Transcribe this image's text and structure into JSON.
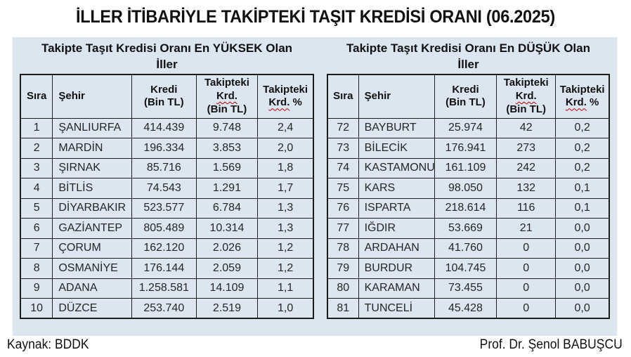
{
  "title": "İLLER İTİBARİYLE TAKİPTEKİ TAŞIT KREDİSİ ORANI (06.2025)",
  "footer": {
    "left": "Kaynak: BDDK",
    "right": "Prof. Dr. Şenol BABUŞCU"
  },
  "colors": {
    "panel_bg": "#dce6f1",
    "border": "#1c1c1c",
    "squiggle": "#c00000",
    "text": "#262626"
  },
  "columns": [
    {
      "key": "rank",
      "lines": [
        [
          {
            "t": "Sıra"
          }
        ]
      ]
    },
    {
      "key": "city",
      "lines": [
        [
          {
            "t": "Şehir"
          }
        ]
      ]
    },
    {
      "key": "credit",
      "lines": [
        [
          {
            "t": "Kredi"
          }
        ],
        [
          {
            "t": "(Bin TL)"
          }
        ]
      ]
    },
    {
      "key": "npl",
      "lines": [
        [
          {
            "t": "Takipteki"
          }
        ],
        [
          {
            "t": "Krd.",
            "sq": true
          }
        ],
        [
          {
            "t": "(Bin TL)"
          }
        ]
      ]
    },
    {
      "key": "ratio",
      "lines": [
        [
          {
            "t": "Takipteki"
          }
        ],
        [
          {
            "t": "Krd.",
            "sq": true
          },
          {
            "t": " %"
          }
        ]
      ]
    }
  ],
  "tables": [
    {
      "id": "highest",
      "title": "Takipte Taşıt Kredisi Oranı En YÜKSEK Olan\nİller",
      "rows": [
        [
          "1",
          "ŞANLIURFA",
          "414.439",
          "9.748",
          "2,4"
        ],
        [
          "2",
          "MARDİN",
          "196.334",
          "3.853",
          "2,0"
        ],
        [
          "3",
          "ŞIRNAK",
          "85.716",
          "1.569",
          "1,8"
        ],
        [
          "4",
          "BİTLİS",
          "74.543",
          "1.291",
          "1,7"
        ],
        [
          "5",
          "DİYARBAKIR",
          "523.577",
          "6.784",
          "1,3"
        ],
        [
          "6",
          "GAZİANTEP",
          "805.489",
          "10.314",
          "1,3"
        ],
        [
          "7",
          "ÇORUM",
          "162.120",
          "2.026",
          "1,2"
        ],
        [
          "8",
          "OSMANİYE",
          "176.144",
          "2.059",
          "1,2"
        ],
        [
          "9",
          "ADANA",
          "1.258.581",
          "14.109",
          "1,1"
        ],
        [
          "10",
          "DÜZCE",
          "253.740",
          "2.519",
          "1,0"
        ]
      ]
    },
    {
      "id": "lowest",
      "title": "Takipte Taşıt Kredisi Oranı En DÜŞÜK Olan\nİller",
      "rows": [
        [
          "72",
          "BAYBURT",
          "25.974",
          "42",
          "0,2"
        ],
        [
          "73",
          "BİLECİK",
          "176.941",
          "273",
          "0,2"
        ],
        [
          "74",
          "KASTAMONU",
          "161.109",
          "242",
          "0,2"
        ],
        [
          "75",
          "KARS",
          "98.050",
          "132",
          "0,1"
        ],
        [
          "76",
          "ISPARTA",
          "218.614",
          "116",
          "0,1"
        ],
        [
          "77",
          "IĞDIR",
          "53.669",
          "21",
          "0,0"
        ],
        [
          "78",
          "ARDAHAN",
          "41.760",
          "0",
          "0,0"
        ],
        [
          "79",
          "BURDUR",
          "104.745",
          "0",
          "0,0"
        ],
        [
          "80",
          "KARAMAN",
          "73.455",
          "0",
          "0,0"
        ],
        [
          "81",
          "TUNCELİ",
          "45.428",
          "0",
          "0,0"
        ]
      ]
    }
  ]
}
